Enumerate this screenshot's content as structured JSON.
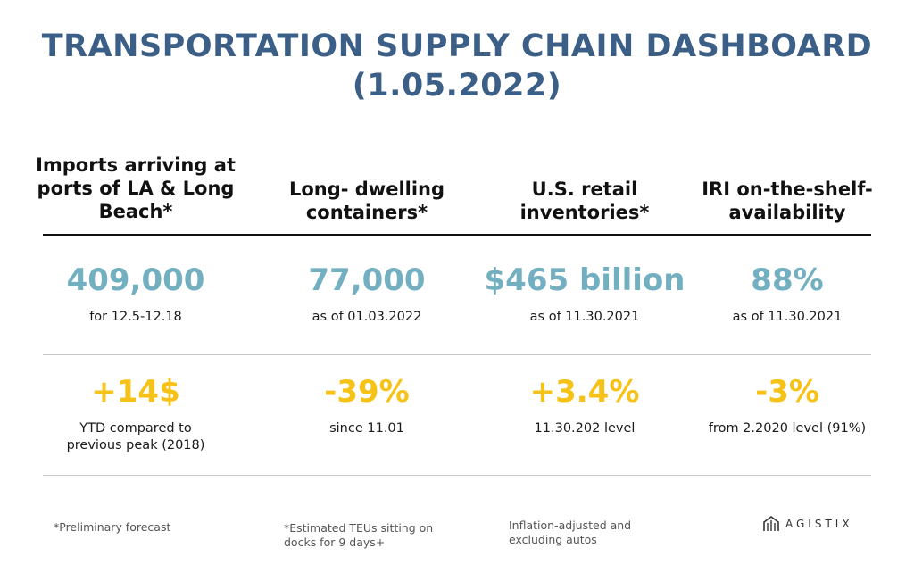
{
  "title": {
    "line1": "TRANSPORTATION SUPPLY CHAIN DASHBOARD",
    "line2": "(1.05.2022)"
  },
  "columns": [
    {
      "header": [
        "Imports arriving at",
        "ports of LA & Long",
        "Beach*"
      ],
      "primary_value": "409,000",
      "primary_caption": "for 12.5-12.18",
      "change_value": "+14$",
      "change_caption": [
        "YTD compared to",
        "previous peak (2018)"
      ],
      "footnote": [
        "*Preliminary forecast"
      ]
    },
    {
      "header": [
        "Long- dwelling",
        "containers*"
      ],
      "primary_value": "77,000",
      "primary_caption": "as of 01.03.2022",
      "change_value": "-39%",
      "change_caption": [
        "since 11.01"
      ],
      "footnote": [
        "*Estimated TEUs sitting on",
        "docks for 9 days+"
      ]
    },
    {
      "header": [
        "U.S. retail",
        "inventories*"
      ],
      "primary_value": "$465 billion",
      "primary_caption": "as of 11.30.2021",
      "change_value": "+3.4%",
      "change_caption": [
        "11.30.202 level"
      ],
      "footnote": [
        "Inflation-adjusted and",
        "excluding autos"
      ]
    },
    {
      "header": [
        "IRI on-the-shelf-",
        "availability"
      ],
      "primary_value": "88%",
      "primary_caption": "as of 11.30.2021",
      "change_value": "-3%",
      "change_caption": [
        "from 2.2020 level (91%)"
      ],
      "footnote": []
    }
  ],
  "logo": {
    "text": "AGISTIX",
    "icon": "agistix-logo-icon"
  },
  "colors": {
    "title": "#3b5f86",
    "primary_value": "#72afc0",
    "change_value": "#f7c217"
  }
}
